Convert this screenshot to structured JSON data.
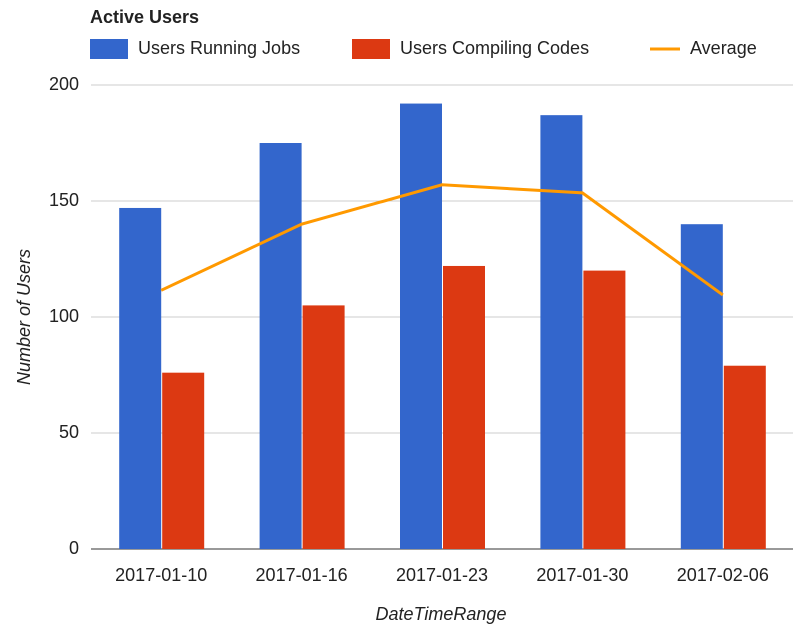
{
  "chart_data": {
    "type": "bar",
    "title": "Active Users",
    "categories": [
      "2017-01-10",
      "2017-01-16",
      "2017-01-23",
      "2017-01-30",
      "2017-02-06"
    ],
    "series": [
      {
        "name": "Users Running Jobs",
        "color": "#3366cc",
        "type": "bar",
        "values": [
          147,
          175,
          192,
          187,
          140
        ]
      },
      {
        "name": "Users Compiling Codes",
        "color": "#dc3912",
        "type": "bar",
        "values": [
          76,
          105,
          122,
          120,
          79
        ]
      },
      {
        "name": "Average",
        "color": "#ff9900",
        "type": "line",
        "values": [
          111.5,
          140,
          157,
          153.5,
          109.5
        ]
      }
    ],
    "ylabel": "Number of Users",
    "xlabel": "DateTimeRange",
    "ylim": [
      0,
      200
    ],
    "yticks": [
      0,
      50,
      100,
      150,
      200
    ],
    "grid": true,
    "legend": "top"
  }
}
